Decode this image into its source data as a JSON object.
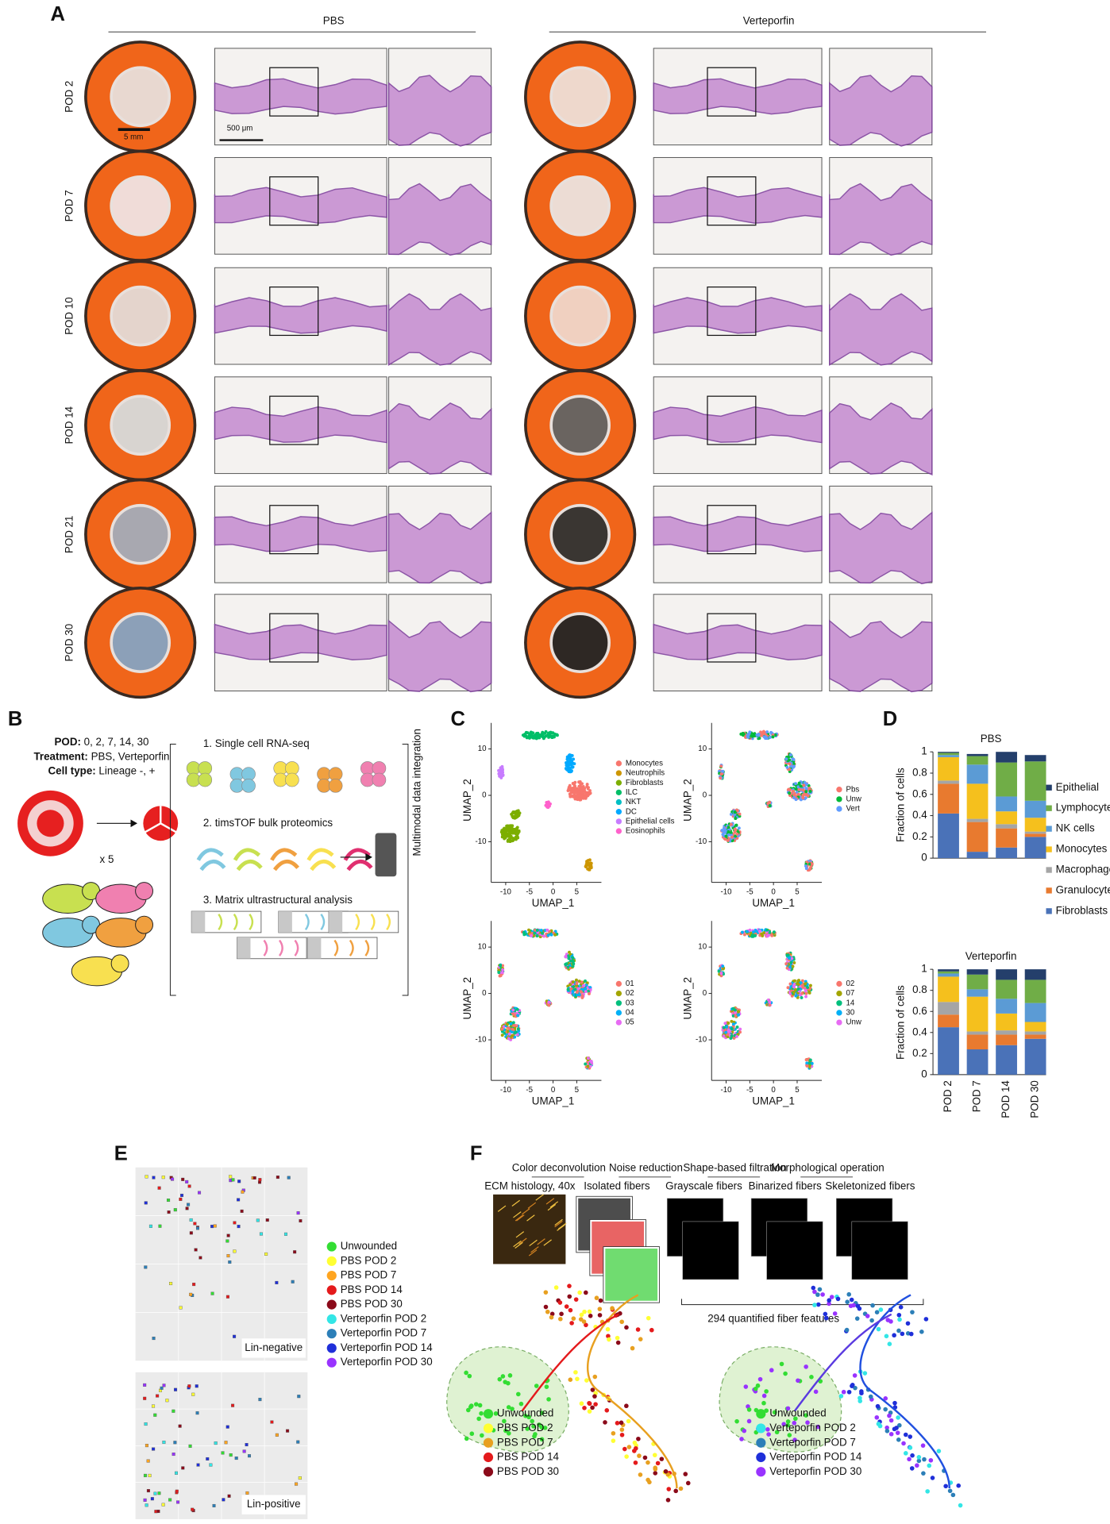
{
  "panel_a": {
    "label": "A",
    "groups": [
      "PBS",
      "Verteporfin"
    ],
    "rows": [
      "POD 2",
      "POD 7",
      "POD 10",
      "POD 14",
      "POD 21",
      "POD 30"
    ],
    "scale_bars": [
      "5 mm",
      "500 μm"
    ]
  },
  "panel_b": {
    "label": "B",
    "design": [
      {
        "key": "POD:",
        "text": "0, 2, 7, 14, 30"
      },
      {
        "key": "Treatment:",
        "text": "PBS, Verteporfin"
      },
      {
        "key": "Cell type:",
        "text": "Lineage -, +"
      }
    ],
    "replicates": "x 5",
    "steps": [
      "1. Single cell RNA-seq",
      "2. timsTOF bulk proteomics",
      "3. Matrix ultrastructural analysis"
    ],
    "integration": "Multimodal data integration"
  },
  "panel_c": {
    "label": "C",
    "xlabel": "UMAP_1",
    "ylabel": "UMAP_2",
    "xticks": [
      -10,
      -5,
      0,
      5
    ],
    "yticks": [
      10,
      0,
      -10
    ],
    "legends": [
      [
        {
          "name": "Monocytes",
          "color": "#f8766d"
        },
        {
          "name": "Neutrophils",
          "color": "#cd9600"
        },
        {
          "name": "Fibroblasts",
          "color": "#7cae00"
        },
        {
          "name": "ILC",
          "color": "#00be67"
        },
        {
          "name": "NKT",
          "color": "#00bfc4"
        },
        {
          "name": "DC",
          "color": "#00a9ff"
        },
        {
          "name": "Epithelial cells",
          "color": "#c77cff"
        },
        {
          "name": "Eosinophils",
          "color": "#ff61cc"
        }
      ],
      [
        {
          "name": "Pbs",
          "color": "#f8766d"
        },
        {
          "name": "Unw",
          "color": "#00ba38"
        },
        {
          "name": "Vert",
          "color": "#619cff"
        }
      ],
      [
        {
          "name": "01",
          "color": "#f8766d"
        },
        {
          "name": "02",
          "color": "#a3a500"
        },
        {
          "name": "03",
          "color": "#00bf7d"
        },
        {
          "name": "04",
          "color": "#00b0f6"
        },
        {
          "name": "05",
          "color": "#e76bf3"
        }
      ],
      [
        {
          "name": "02",
          "color": "#f8766d"
        },
        {
          "name": "07",
          "color": "#a3a500"
        },
        {
          "name": "14",
          "color": "#00bf7d"
        },
        {
          "name": "30",
          "color": "#00b0f6"
        },
        {
          "name": "Unw",
          "color": "#e76bf3"
        }
      ]
    ]
  },
  "panel_d": {
    "label": "D",
    "ylabel": "Fraction of cells"
  },
  "chart_data": [
    {
      "type": "bar",
      "stacked": true,
      "title": "PBS",
      "ylim": [
        0,
        1
      ],
      "yticks": [
        0,
        0.2,
        0.4,
        0.6,
        0.8,
        1
      ],
      "series": [
        {
          "name": "Fibroblasts",
          "color": "#4a72b8",
          "values": [
            0.42,
            0.06,
            0.1,
            0.2
          ]
        },
        {
          "name": "Granulocytes",
          "color": "#e87a2f",
          "values": [
            0.28,
            0.28,
            0.18,
            0.03
          ]
        },
        {
          "name": "Macrophages",
          "color": "#a5a5a5",
          "values": [
            0.03,
            0.03,
            0.04,
            0.02
          ]
        },
        {
          "name": "Monocytes",
          "color": "#f5c01d",
          "values": [
            0.22,
            0.33,
            0.12,
            0.13
          ]
        },
        {
          "name": "NK cells",
          "color": "#5b9bd5",
          "values": [
            0.02,
            0.18,
            0.14,
            0.16
          ]
        },
        {
          "name": "Lymphocytes",
          "color": "#70ad47",
          "values": [
            0.02,
            0.08,
            0.32,
            0.37
          ]
        },
        {
          "name": "Epithelial",
          "color": "#243f6b",
          "values": [
            0.01,
            0.02,
            0.1,
            0.06
          ]
        }
      ]
    },
    {
      "type": "bar",
      "stacked": true,
      "title": "Verteporfin",
      "categories": [
        "POD 2",
        "POD 7",
        "POD 14",
        "POD 30"
      ],
      "ylim": [
        0,
        1
      ],
      "yticks": [
        0,
        0.2,
        0.4,
        0.6,
        0.8,
        1
      ],
      "series": [
        {
          "color": "#4a72b8",
          "values": [
            0.45,
            0.24,
            0.28,
            0.34
          ]
        },
        {
          "color": "#e87a2f",
          "values": [
            0.12,
            0.14,
            0.1,
            0.04
          ]
        },
        {
          "color": "#a5a5a5",
          "values": [
            0.12,
            0.03,
            0.04,
            0.03
          ]
        },
        {
          "color": "#f5c01d",
          "values": [
            0.24,
            0.33,
            0.16,
            0.09
          ]
        },
        {
          "color": "#5b9bd5",
          "values": [
            0.03,
            0.07,
            0.14,
            0.18
          ]
        },
        {
          "color": "#70ad47",
          "values": [
            0.02,
            0.14,
            0.18,
            0.22
          ]
        },
        {
          "color": "#243f6b",
          "values": [
            0.02,
            0.05,
            0.1,
            0.1
          ]
        }
      ]
    }
  ],
  "panel_e": {
    "label": "E",
    "plots": [
      "Lin-negative",
      "Lin-positive"
    ],
    "legend": [
      {
        "name": "Unwounded",
        "color": "#33dd33"
      },
      {
        "name": "PBS POD 2",
        "color": "#ffff33"
      },
      {
        "name": "PBS POD 7",
        "color": "#ffa520"
      },
      {
        "name": "PBS POD 14",
        "color": "#e41a1c"
      },
      {
        "name": "PBS POD 30",
        "color": "#8b0a1a"
      },
      {
        "name": "Verteporfin POD 2",
        "color": "#33e6e6"
      },
      {
        "name": "Verteporfin POD 7",
        "color": "#2c7fb8"
      },
      {
        "name": "Verteporfin POD 14",
        "color": "#1f2fd9"
      },
      {
        "name": "Verteporfin POD 30",
        "color": "#9933ff"
      }
    ]
  },
  "panel_f": {
    "label": "F",
    "operations": [
      "Color deconvolution",
      "Noise reduction",
      "Shape-based filtration",
      "Morphological operation"
    ],
    "stages": [
      "ECM histology, 40x",
      "Isolated fibers",
      "Grayscale fibers",
      "Binarized fibers",
      "Skeletonized fibers"
    ],
    "features": "294 quantified fiber features",
    "legends": [
      [
        {
          "name": "Unwounded",
          "color": "#33dd33"
        },
        {
          "name": "PBS POD 2",
          "color": "#ffff33"
        },
        {
          "name": "PBS POD 7",
          "color": "#e8a020"
        },
        {
          "name": "PBS POD 14",
          "color": "#e41a1c"
        },
        {
          "name": "PBS POD 30",
          "color": "#8b0a1a"
        }
      ],
      [
        {
          "name": "Unwounded",
          "color": "#33dd33"
        },
        {
          "name": "Verteporfin POD 2",
          "color": "#33e6e6"
        },
        {
          "name": "Verteporfin POD 7",
          "color": "#2c7fb8"
        },
        {
          "name": "Verteporfin POD 14",
          "color": "#1f2fd9"
        },
        {
          "name": "Verteporfin POD 30",
          "color": "#9933ff"
        }
      ]
    ]
  }
}
